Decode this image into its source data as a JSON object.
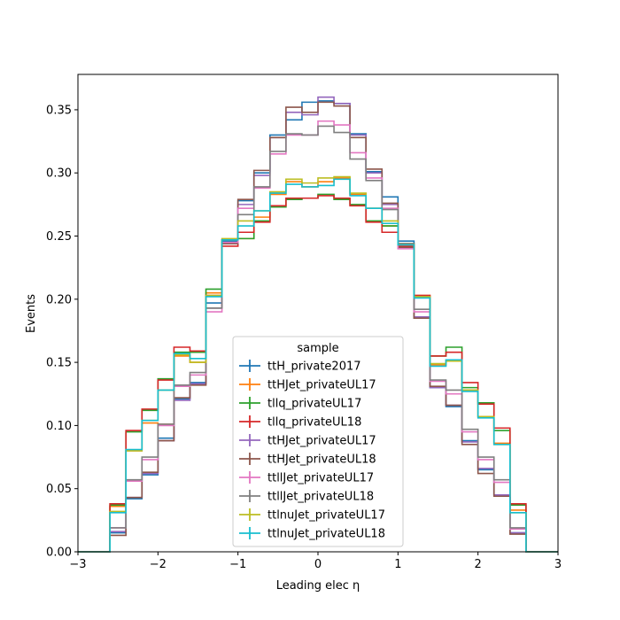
{
  "chart_data": {
    "type": "step-histogram",
    "xlabel": "Leading elec η",
    "ylabel": "Events",
    "xlim": [
      -3,
      3
    ],
    "ylim": [
      0,
      0.378
    ],
    "x_ticks": [
      -3,
      -2,
      -1,
      0,
      1,
      2,
      3
    ],
    "x_tick_labels": [
      "−3",
      "−2",
      "−1",
      "0",
      "1",
      "2",
      "3"
    ],
    "y_ticks": [
      0,
      0.05,
      0.1,
      0.15,
      0.2,
      0.25,
      0.3,
      0.35
    ],
    "y_tick_labels": [
      "0.00",
      "0.05",
      "0.10",
      "0.15",
      "0.20",
      "0.25",
      "0.30",
      "0.35"
    ],
    "grid": false,
    "legend_title": "sample",
    "legend_position": "lower center",
    "bin_edges": [
      -3.0,
      -2.8,
      -2.6,
      -2.4,
      -2.2,
      -2.0,
      -1.8,
      -1.6,
      -1.4,
      -1.2,
      -1.0,
      -0.8,
      -0.6,
      -0.4,
      -0.2,
      0.0,
      0.2,
      0.4,
      0.6,
      0.8,
      1.0,
      1.2,
      1.4,
      1.6,
      1.8,
      2.0,
      2.2,
      2.4,
      2.6,
      2.8,
      3.0
    ],
    "series": [
      {
        "name": "ttH_private2017",
        "color": "#1f77b4",
        "values": [
          0,
          0,
          0.015,
          0.042,
          0.061,
          0.09,
          0.121,
          0.134,
          0.197,
          0.246,
          0.278,
          0.3,
          0.33,
          0.342,
          0.356,
          0.357,
          0.355,
          0.331,
          0.301,
          0.281,
          0.246,
          0.185,
          0.13,
          0.115,
          0.088,
          0.065,
          0.045,
          0.015,
          0,
          0
        ]
      },
      {
        "name": "ttHJet_privateUL17",
        "color": "#ff7f0e",
        "values": [
          0,
          0,
          0.036,
          0.08,
          0.102,
          0.101,
          0.155,
          0.15,
          0.205,
          0.247,
          0.248,
          0.265,
          0.283,
          0.293,
          0.289,
          0.293,
          0.296,
          0.283,
          0.272,
          0.258,
          0.243,
          0.203,
          0.148,
          0.152,
          0.128,
          0.107,
          0.086,
          0.033,
          0,
          0
        ]
      },
      {
        "name": "tllq_privateUL17",
        "color": "#2ca02c",
        "values": [
          0,
          0,
          0.037,
          0.095,
          0.112,
          0.137,
          0.158,
          0.158,
          0.208,
          0.244,
          0.248,
          0.262,
          0.273,
          0.279,
          0.28,
          0.283,
          0.279,
          0.275,
          0.262,
          0.258,
          0.244,
          0.202,
          0.155,
          0.162,
          0.13,
          0.118,
          0.096,
          0.037,
          0,
          0
        ]
      },
      {
        "name": "tllq_privateUL18",
        "color": "#d62728",
        "values": [
          0,
          0,
          0.038,
          0.096,
          0.113,
          0.136,
          0.162,
          0.159,
          0.203,
          0.242,
          0.253,
          0.261,
          0.274,
          0.28,
          0.28,
          0.282,
          0.28,
          0.274,
          0.261,
          0.253,
          0.242,
          0.203,
          0.155,
          0.158,
          0.134,
          0.117,
          0.098,
          0.038,
          0,
          0
        ]
      },
      {
        "name": "ttHJet_privateUL17",
        "color": "#9467bd",
        "values": [
          0,
          0,
          0.016,
          0.043,
          0.062,
          0.088,
          0.12,
          0.133,
          0.193,
          0.244,
          0.275,
          0.298,
          0.328,
          0.348,
          0.346,
          0.36,
          0.355,
          0.33,
          0.3,
          0.275,
          0.243,
          0.186,
          0.13,
          0.116,
          0.087,
          0.066,
          0.045,
          0.015,
          0,
          0
        ]
      },
      {
        "name": "ttHJet_privateUL18",
        "color": "#8c564b",
        "values": [
          0,
          0,
          0.013,
          0.043,
          0.063,
          0.088,
          0.122,
          0.132,
          0.193,
          0.244,
          0.279,
          0.302,
          0.328,
          0.352,
          0.348,
          0.356,
          0.353,
          0.328,
          0.303,
          0.276,
          0.241,
          0.185,
          0.131,
          0.116,
          0.085,
          0.062,
          0.044,
          0.014,
          0,
          0
        ]
      },
      {
        "name": "ttllJet_privateUL17",
        "color": "#e377c2",
        "values": [
          0,
          0,
          0.019,
          0.056,
          0.073,
          0.1,
          0.131,
          0.14,
          0.19,
          0.245,
          0.272,
          0.288,
          0.315,
          0.33,
          0.33,
          0.341,
          0.338,
          0.316,
          0.296,
          0.272,
          0.24,
          0.19,
          0.135,
          0.125,
          0.095,
          0.073,
          0.055,
          0.018,
          0,
          0
        ]
      },
      {
        "name": "ttllJet_privateUL18",
        "color": "#7f7f7f",
        "values": [
          0,
          0,
          0.019,
          0.057,
          0.075,
          0.101,
          0.132,
          0.142,
          0.193,
          0.247,
          0.267,
          0.289,
          0.317,
          0.331,
          0.33,
          0.337,
          0.332,
          0.311,
          0.294,
          0.271,
          0.244,
          0.192,
          0.136,
          0.128,
          0.097,
          0.075,
          0.057,
          0.019,
          0,
          0
        ]
      },
      {
        "name": "ttlnuJet_privateUL17",
        "color": "#bcbd22",
        "values": [
          0,
          0,
          0.032,
          0.08,
          0.104,
          0.128,
          0.156,
          0.15,
          0.203,
          0.248,
          0.262,
          0.27,
          0.285,
          0.295,
          0.292,
          0.296,
          0.297,
          0.284,
          0.272,
          0.262,
          0.243,
          0.202,
          0.149,
          0.151,
          0.128,
          0.107,
          0.085,
          0.031,
          0,
          0
        ]
      },
      {
        "name": "ttlnuJet_privateUL18",
        "color": "#17becf",
        "values": [
          0,
          0,
          0.031,
          0.081,
          0.104,
          0.128,
          0.157,
          0.153,
          0.202,
          0.247,
          0.258,
          0.27,
          0.284,
          0.291,
          0.289,
          0.29,
          0.295,
          0.282,
          0.272,
          0.26,
          0.243,
          0.201,
          0.147,
          0.152,
          0.127,
          0.106,
          0.085,
          0.031,
          0,
          0
        ]
      }
    ]
  }
}
